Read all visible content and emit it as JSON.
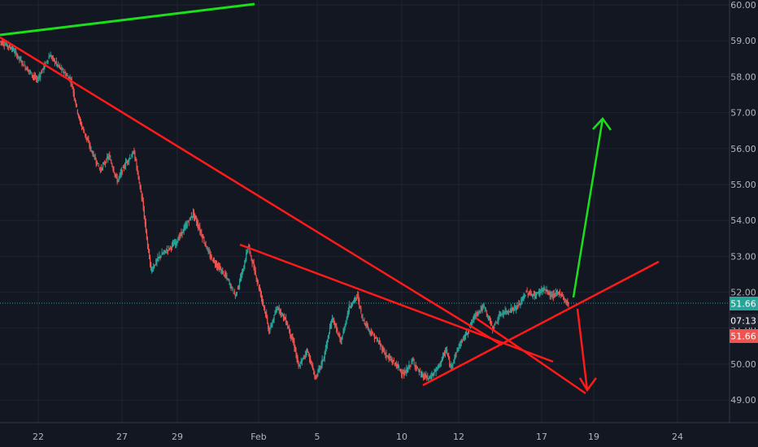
{
  "chart_data": {
    "type": "candlestick",
    "title": "",
    "xlabel": "",
    "ylabel": "",
    "ylim": [
      48.4,
      60.2
    ],
    "grid": true,
    "x_ticks": [
      "22",
      "27",
      "29",
      "Feb",
      "5",
      "10",
      "12",
      "17",
      "19",
      "24"
    ],
    "y_ticks": [
      "49.00",
      "50.00",
      "51.00",
      "52.00",
      "53.00",
      "54.00",
      "55.00",
      "56.00",
      "57.00",
      "58.00",
      "59.00",
      "60.00"
    ],
    "last_price": 51.66,
    "last_price_label": "51.66",
    "countdown_label": "07:13",
    "secondary_price_label": "51.66",
    "price_path": [
      [
        0,
        59.0
      ],
      [
        3,
        58.8
      ],
      [
        6,
        58.3
      ],
      [
        9,
        57.9
      ],
      [
        12,
        58.6
      ],
      [
        14,
        58.3
      ],
      [
        17,
        57.9
      ],
      [
        19,
        56.8
      ],
      [
        22,
        55.9
      ],
      [
        24,
        55.4
      ],
      [
        26,
        55.8
      ],
      [
        28,
        55.1
      ],
      [
        30,
        55.6
      ],
      [
        32,
        55.9
      ],
      [
        34,
        54.5
      ],
      [
        35,
        53.5
      ],
      [
        36,
        52.6
      ],
      [
        38,
        53.0
      ],
      [
        40,
        53.2
      ],
      [
        42,
        53.4
      ],
      [
        44,
        53.8
      ],
      [
        46,
        54.2
      ],
      [
        48,
        53.6
      ],
      [
        50,
        53.0
      ],
      [
        52,
        52.7
      ],
      [
        54,
        52.4
      ],
      [
        56,
        51.9
      ],
      [
        58,
        52.7
      ],
      [
        59,
        53.3
      ],
      [
        61,
        52.4
      ],
      [
        63,
        51.5
      ],
      [
        64,
        50.9
      ],
      [
        66,
        51.6
      ],
      [
        68,
        51.2
      ],
      [
        70,
        50.5
      ],
      [
        71,
        49.9
      ],
      [
        73,
        50.4
      ],
      [
        75,
        49.6
      ],
      [
        77,
        50.2
      ],
      [
        79,
        51.3
      ],
      [
        81,
        50.6
      ],
      [
        83,
        51.6
      ],
      [
        85,
        51.9
      ],
      [
        86,
        51.3
      ],
      [
        88,
        50.9
      ],
      [
        90,
        50.6
      ],
      [
        92,
        50.2
      ],
      [
        94,
        50.0
      ],
      [
        96,
        49.7
      ],
      [
        98,
        50.1
      ],
      [
        100,
        49.7
      ],
      [
        102,
        49.6
      ],
      [
        104,
        49.9
      ],
      [
        106,
        50.4
      ],
      [
        107,
        49.9
      ],
      [
        109,
        50.5
      ],
      [
        111,
        50.9
      ],
      [
        113,
        51.4
      ],
      [
        115,
        51.6
      ],
      [
        117,
        51.0
      ],
      [
        119,
        51.4
      ],
      [
        121,
        51.5
      ],
      [
        123,
        51.6
      ],
      [
        125,
        52.0
      ],
      [
        127,
        51.9
      ],
      [
        129,
        52.1
      ],
      [
        131,
        51.9
      ],
      [
        133,
        52.0
      ],
      [
        134,
        51.8
      ],
      [
        135,
        51.66
      ]
    ]
  },
  "drawings": {
    "colors": {
      "red": "#ff1a1a",
      "green": "#1adf1a"
    }
  },
  "colors": {
    "background": "#131722",
    "grid": "#1f2430",
    "axis_text": "#b2b5be",
    "candle_up": "#26a69a",
    "candle_down": "#ef5350",
    "last_price_badge": "#26a69a",
    "countdown_badge": "#1e222d",
    "secondary_badge": "#ef5350"
  }
}
